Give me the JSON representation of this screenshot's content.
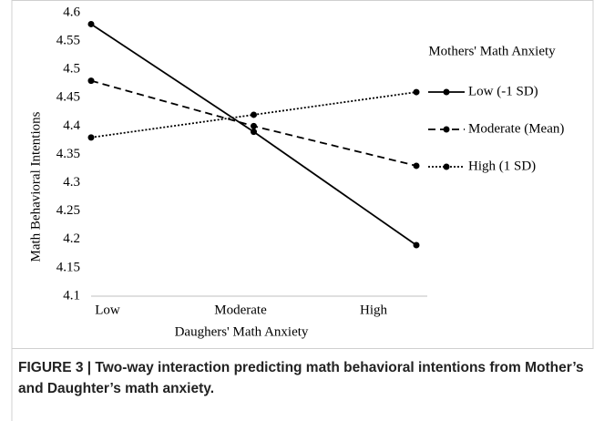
{
  "chart_data": {
    "type": "line",
    "categories": [
      "Low",
      "Moderate",
      "High"
    ],
    "series": [
      {
        "name": "Low (-1 SD)",
        "color": "#000000",
        "dash": "solid",
        "values": [
          4.58,
          4.39,
          4.19
        ]
      },
      {
        "name": "Moderate (Mean)",
        "color": "#000000",
        "dash": "dashed",
        "values": [
          4.48,
          4.4,
          4.33
        ]
      },
      {
        "name": "High (1 SD)",
        "color": "#000000",
        "dash": "dotted",
        "values": [
          4.38,
          4.42,
          4.46
        ]
      }
    ],
    "ylim": [
      4.1,
      4.6
    ],
    "yticks": [
      4.1,
      4.15,
      4.2,
      4.25,
      4.3,
      4.35,
      4.4,
      4.45,
      4.5,
      4.55,
      4.6
    ],
    "ylabel": "Math Behavioral Intentions",
    "xlabel": "Daughers' Math Anxiety",
    "legend_title": "Mothers' Math Anxiety",
    "legend_position": "right",
    "grid": false
  },
  "caption": "FIGURE 3 | Two-way interaction predicting math behavioral intentions from Mother’s and Daughter’s math anxiety."
}
